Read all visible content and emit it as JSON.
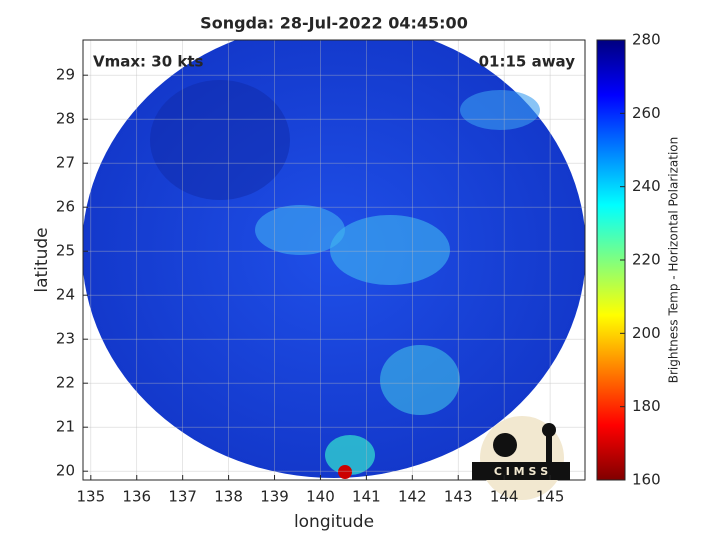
{
  "chart_data": {
    "type": "image",
    "title": "Songda: 28-Jul-2022 04:45:00",
    "annotations": [
      "Vmax: 30 kts",
      "01:15 away"
    ],
    "x_label": "longitude",
    "y_label": "latitude",
    "xlim": [
      134.83,
      145.76
    ],
    "ylim": [
      19.8,
      29.8
    ],
    "xticks": [
      135,
      136,
      137,
      138,
      139,
      140,
      141,
      142,
      143,
      144,
      145
    ],
    "yticks": [
      20,
      21,
      22,
      23,
      24,
      25,
      26,
      27,
      28,
      29
    ],
    "grid": true,
    "colorbar": {
      "label": "Brightness Temp - Horizontal Polarization",
      "lim": [
        160,
        280
      ],
      "ticks": [
        160,
        180,
        200,
        220,
        240,
        260,
        280
      ],
      "colormap": "jet"
    },
    "logo": "C I M S S"
  }
}
